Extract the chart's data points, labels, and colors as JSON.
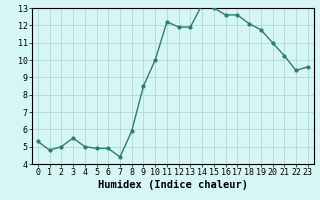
{
  "x": [
    0,
    1,
    2,
    3,
    4,
    5,
    6,
    7,
    8,
    9,
    10,
    11,
    12,
    13,
    14,
    15,
    16,
    17,
    18,
    19,
    20,
    21,
    22,
    23
  ],
  "y": [
    5.3,
    4.8,
    5.0,
    5.5,
    5.0,
    4.9,
    4.9,
    4.4,
    5.9,
    8.5,
    10.0,
    12.2,
    11.9,
    11.9,
    13.2,
    13.0,
    12.6,
    12.6,
    12.1,
    11.75,
    11.0,
    10.25,
    9.4,
    9.6
  ],
  "line_color": "#2e7d6e",
  "marker": "o",
  "marker_size": 2,
  "line_width": 1.0,
  "xlabel": "Humidex (Indice chaleur)",
  "xlim": [
    -0.5,
    23.5
  ],
  "ylim": [
    4,
    13
  ],
  "yticks": [
    4,
    5,
    6,
    7,
    8,
    9,
    10,
    11,
    12,
    13
  ],
  "xticks": [
    0,
    1,
    2,
    3,
    4,
    5,
    6,
    7,
    8,
    9,
    10,
    11,
    12,
    13,
    14,
    15,
    16,
    17,
    18,
    19,
    20,
    21,
    22,
    23
  ],
  "bg_color": "#d6f5f5",
  "grid_color": "#b0d8d8",
  "tick_label_fontsize": 6,
  "xlabel_fontsize": 7.5,
  "xlabel_fontweight": "bold"
}
